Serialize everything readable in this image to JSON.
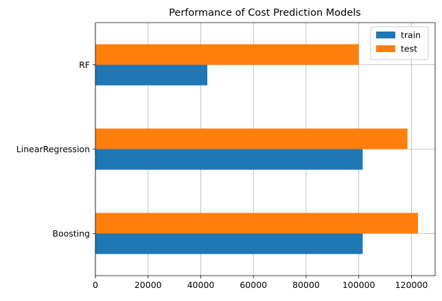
{
  "chart_data": {
    "type": "bar",
    "orientation": "horizontal",
    "title": "Performance of Cost Prediction Models",
    "xlabel": "",
    "ylabel": "",
    "categories": [
      "Boosting",
      "LinearRegression",
      "RF"
    ],
    "series": [
      {
        "name": "train",
        "color": "#1f77b4",
        "values": [
          101500,
          101500,
          42500
        ]
      },
      {
        "name": "test",
        "color": "#ff7f0e",
        "values": [
          122500,
          118500,
          100000
        ]
      }
    ],
    "xlim": [
      0,
      129000
    ],
    "xticks": [
      0,
      20000,
      40000,
      60000,
      80000,
      100000,
      120000
    ],
    "xtick_labels": [
      "0",
      "20000",
      "40000",
      "60000",
      "80000",
      "100000",
      "120000"
    ],
    "grid": true,
    "legend_position": "top-right"
  }
}
